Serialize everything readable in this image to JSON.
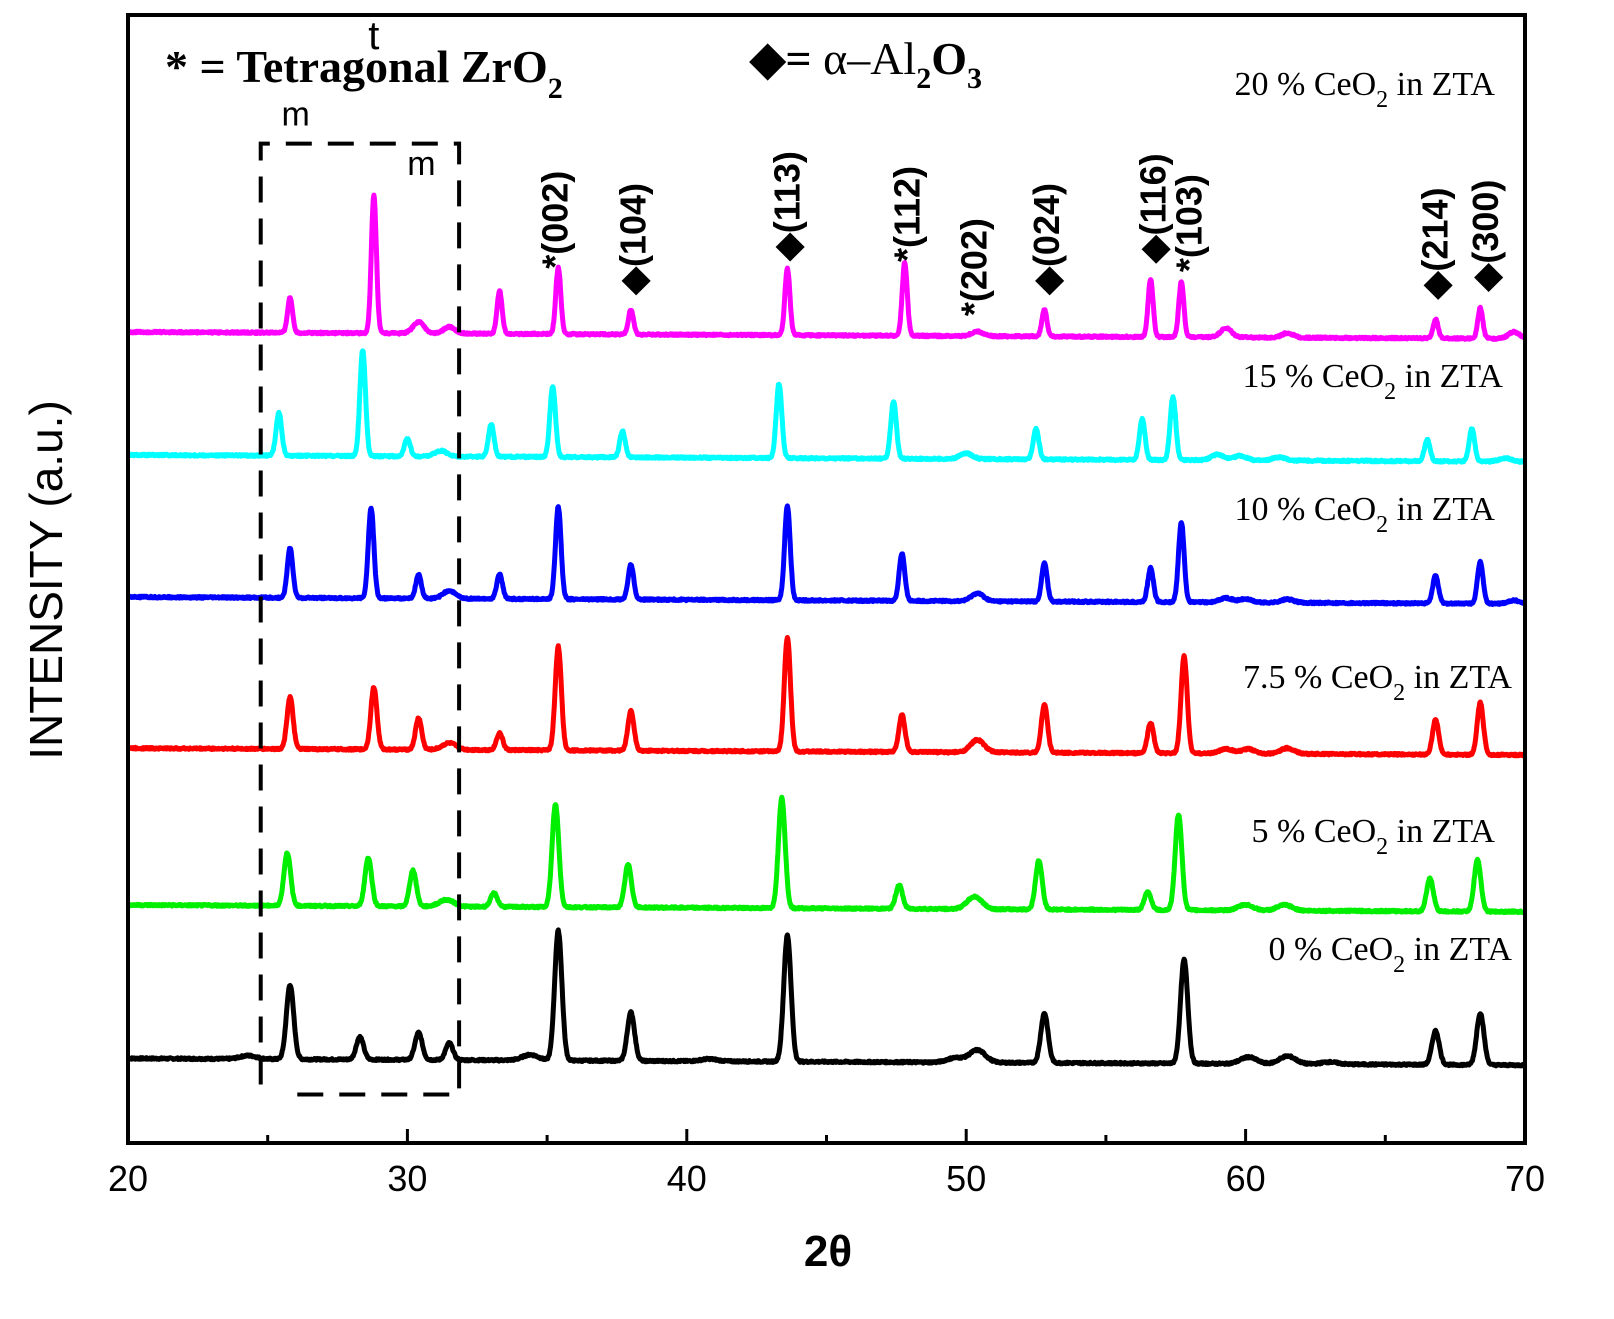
{
  "chart_data": {
    "type": "line",
    "title": "",
    "xlabel": "2θ",
    "ylabel": "INTENSITY (a.u.)",
    "xlim": [
      20,
      70
    ],
    "ylim": [
      0,
      1000
    ],
    "xticks": [
      20,
      30,
      40,
      50,
      60,
      70
    ],
    "xticks_minor": [
      25,
      35,
      45,
      55,
      65
    ],
    "grid": false,
    "legend_notes": [
      {
        "symbol": "*",
        "eq": " = ",
        "text": "Tetragonal ZrO",
        "sub": "2",
        "after": ""
      },
      {
        "symbol": "◆",
        "eq": "= ",
        "text": "α–Al",
        "sub": "2",
        "after": "O",
        "sub2": "3"
      }
    ],
    "series": [
      {
        "name": "0 % CeO2 in ZTA",
        "label": {
          "pre": "0 % CeO",
          "sub": "2",
          "post": " in ZTA"
        },
        "color": "#000000",
        "offset": 72,
        "width": 0.13,
        "peaks": [
          [
            24.3,
            3
          ],
          [
            25.8,
            66
          ],
          [
            28.3,
            20
          ],
          [
            30.4,
            24
          ],
          [
            31.5,
            15
          ],
          [
            34.4,
            5
          ],
          [
            35.4,
            115
          ],
          [
            38.0,
            43
          ],
          [
            40.8,
            2
          ],
          [
            43.6,
            112
          ],
          [
            49.6,
            4
          ],
          [
            50.4,
            11
          ],
          [
            52.8,
            44
          ],
          [
            57.8,
            92
          ],
          [
            60.1,
            6
          ],
          [
            61.5,
            7
          ],
          [
            63.0,
            2
          ],
          [
            66.8,
            30
          ],
          [
            68.4,
            46
          ]
        ]
      },
      {
        "name": "5 % CeO2 in ZTA",
        "label": {
          "pre": "5 % CeO",
          "sub": "2",
          "post": " in ZTA"
        },
        "color": "#00ee00",
        "offset": 208,
        "width": 0.12,
        "peaks": [
          [
            25.7,
            47
          ],
          [
            28.6,
            43
          ],
          [
            30.2,
            32
          ],
          [
            31.4,
            6
          ],
          [
            33.1,
            12
          ],
          [
            35.3,
            91
          ],
          [
            37.9,
            38
          ],
          [
            43.4,
            98
          ],
          [
            47.6,
            21
          ],
          [
            50.3,
            11
          ],
          [
            52.6,
            43
          ],
          [
            56.5,
            16
          ],
          [
            57.6,
            85
          ],
          [
            60.0,
            5
          ],
          [
            61.4,
            5
          ],
          [
            66.6,
            29
          ],
          [
            68.3,
            46
          ]
        ]
      },
      {
        "name": "7.5 % CeO2 in ZTA",
        "label": {
          "pre": "7.5 % CeO",
          "sub": "2",
          "post": " in ZTA"
        },
        "color": "#ff0000",
        "offset": 347,
        "width": 0.11,
        "peaks": [
          [
            25.8,
            46
          ],
          [
            28.8,
            55
          ],
          [
            30.4,
            28
          ],
          [
            31.5,
            6
          ],
          [
            33.3,
            15
          ],
          [
            35.4,
            92
          ],
          [
            38.0,
            35
          ],
          [
            43.6,
            101
          ],
          [
            47.7,
            33
          ],
          [
            50.4,
            11
          ],
          [
            52.8,
            43
          ],
          [
            56.6,
            27
          ],
          [
            57.8,
            86
          ],
          [
            59.3,
            4
          ],
          [
            60.1,
            4
          ],
          [
            61.5,
            5
          ],
          [
            66.8,
            31
          ],
          [
            68.4,
            46
          ]
        ]
      },
      {
        "name": "10 % CeO2 in ZTA",
        "label": {
          "pre": "10 % CeO",
          "sub": "2",
          "post": " in ZTA"
        },
        "color": "#0000ff",
        "offset": 481,
        "width": 0.1,
        "peaks": [
          [
            25.8,
            44
          ],
          [
            28.7,
            80
          ],
          [
            30.4,
            21
          ],
          [
            31.5,
            7
          ],
          [
            33.3,
            22
          ],
          [
            35.4,
            82
          ],
          [
            38.0,
            31
          ],
          [
            43.6,
            84
          ],
          [
            47.7,
            42
          ],
          [
            50.4,
            7
          ],
          [
            52.8,
            34
          ],
          [
            56.6,
            30
          ],
          [
            57.7,
            71
          ],
          [
            59.3,
            4
          ],
          [
            60.0,
            3
          ],
          [
            61.5,
            3
          ],
          [
            66.8,
            25
          ],
          [
            68.4,
            37
          ],
          [
            69.6,
            3
          ]
        ]
      },
      {
        "name": "15 % CeO2 in ZTA",
        "label": {
          "pre": "15 % CeO",
          "sub": "2",
          "post": " in ZTA"
        },
        "color": "#00ffff",
        "offset": 607,
        "width": 0.1,
        "peaks": [
          [
            25.4,
            38
          ],
          [
            28.4,
            94
          ],
          [
            30.0,
            16
          ],
          [
            31.2,
            5
          ],
          [
            33.0,
            29
          ],
          [
            35.2,
            63
          ],
          [
            37.7,
            23
          ],
          [
            43.3,
            66
          ],
          [
            47.4,
            51
          ],
          [
            50.0,
            5
          ],
          [
            52.5,
            27
          ],
          [
            56.3,
            36
          ],
          [
            57.4,
            56
          ],
          [
            59.0,
            5
          ],
          [
            59.8,
            4
          ],
          [
            61.2,
            3
          ],
          [
            66.5,
            19
          ],
          [
            68.1,
            29
          ],
          [
            69.3,
            3
          ]
        ]
      },
      {
        "name": "20 % CeO2 in ZTA",
        "label": {
          "pre": "20 % CeO",
          "sub": "2",
          "post": " in ZTA"
        },
        "color": "#ff00ff",
        "offset": 716,
        "width": 0.09,
        "peaks": [
          [
            25.8,
            31
          ],
          [
            28.8,
            122
          ],
          [
            30.4,
            10
          ],
          [
            31.5,
            6
          ],
          [
            33.3,
            38
          ],
          [
            35.4,
            59
          ],
          [
            38.0,
            22
          ],
          [
            43.6,
            59
          ],
          [
            47.8,
            65
          ],
          [
            50.4,
            4
          ],
          [
            52.8,
            24
          ],
          [
            56.6,
            51
          ],
          [
            57.7,
            49
          ],
          [
            59.3,
            8
          ],
          [
            61.5,
            4
          ],
          [
            66.8,
            17
          ],
          [
            68.4,
            27
          ],
          [
            69.6,
            6
          ]
        ]
      }
    ],
    "phase_labels": [
      {
        "text": "m",
        "x": 26.0,
        "y": 902
      },
      {
        "text": "t",
        "x": 28.8,
        "y": 970
      },
      {
        "text": "m",
        "x": 30.5,
        "y": 858
      }
    ],
    "peak_labels": [
      {
        "mark": "*",
        "hkl": "(002)",
        "x": 35.3,
        "y": 775
      },
      {
        "mark": "◆",
        "hkl": "(104)",
        "x": 38.1,
        "y": 752
      },
      {
        "mark": "◆",
        "hkl": "(113)",
        "x": 43.6,
        "y": 782
      },
      {
        "mark": "*",
        "hkl": "(112)",
        "x": 47.9,
        "y": 781
      },
      {
        "mark": "*",
        "hkl": "(202)",
        "x": 50.3,
        "y": 733
      },
      {
        "mark": "◆",
        "hkl": "(024)",
        "x": 52.9,
        "y": 752
      },
      {
        "mark": "◆",
        "hkl": "(116)",
        "x": 56.7,
        "y": 780
      },
      {
        "mark": "*",
        "hkl": "(103)",
        "x": 58.0,
        "y": 772
      },
      {
        "mark": "◆",
        "hkl": "(214)",
        "x": 66.8,
        "y": 748
      },
      {
        "mark": "◆",
        "hkl": "(300)",
        "x": 68.6,
        "y": 755
      }
    ],
    "region_box": {
      "x": [
        24.75,
        31.85
      ],
      "y": [
        43,
        886
      ]
    }
  }
}
